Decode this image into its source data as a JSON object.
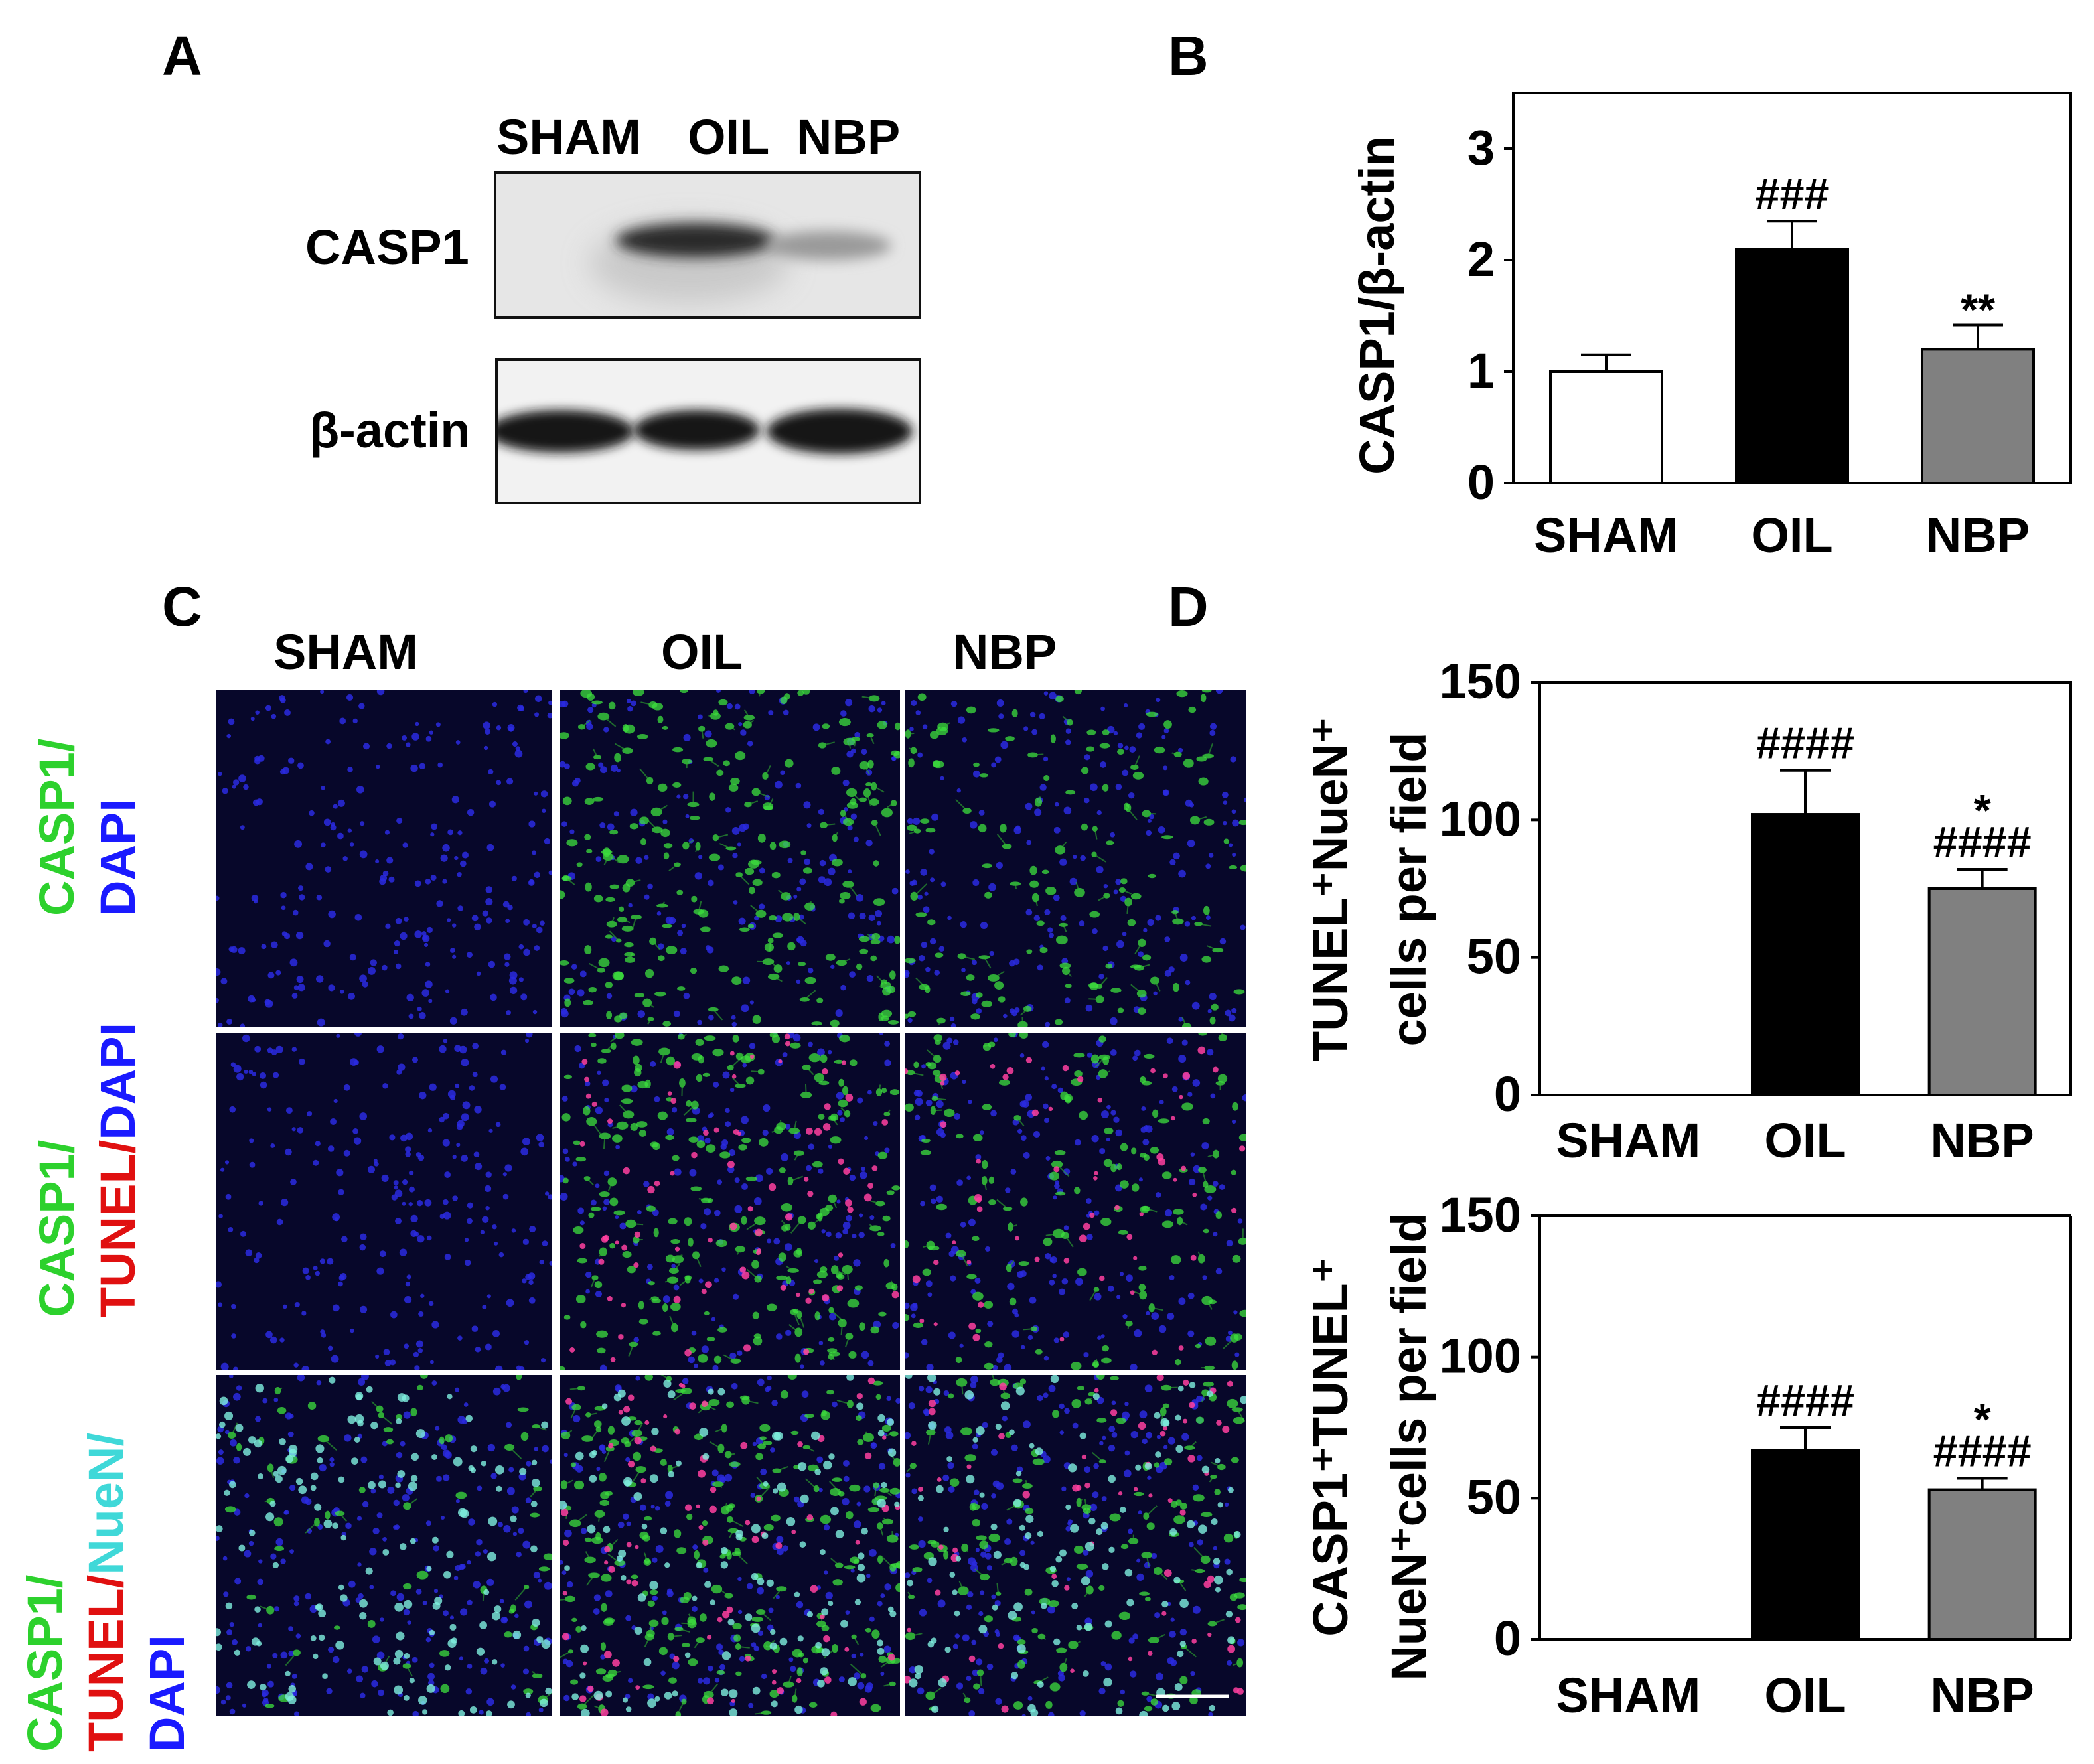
{
  "panels": {
    "A": "A",
    "B": "B",
    "C": "C",
    "D": "D"
  },
  "panelA": {
    "lanes": [
      "SHAM",
      "OIL",
      "NBP"
    ],
    "proteins": [
      "CASP1",
      "β-actin"
    ]
  },
  "panelC": {
    "columns": [
      "SHAM",
      "OIL",
      "NBP"
    ],
    "rows": [
      {
        "parts": [
          {
            "text": "CASP1/",
            "color": "#2dd12d"
          },
          {
            "text": "DAPI",
            "color": "#1a1aff"
          }
        ]
      },
      {
        "parts": [
          {
            "text": "CASP1/",
            "color": "#2dd12d"
          },
          {
            "text": "TUNEL/",
            "color": "#e01010"
          },
          {
            "text": "DAPI",
            "color": "#1a1aff"
          }
        ]
      },
      {
        "parts": [
          {
            "text": "CASP1/",
            "color": "#2dd12d"
          },
          {
            "text": "TUNEL/",
            "color": "#e01010"
          },
          {
            "text": "NueN/",
            "color": "#3fd8d8"
          },
          {
            "text": "DAPI",
            "color": "#1a1aff"
          }
        ]
      }
    ]
  },
  "chart_data": [
    {
      "type": "bar",
      "panel": "B",
      "categories": [
        "SHAM",
        "OIL",
        "NBP"
      ],
      "values": [
        1.0,
        2.1,
        1.2
      ],
      "errors": [
        0.15,
        0.25,
        0.22
      ],
      "annotations": [
        "",
        "###",
        "**"
      ],
      "ylabel": "CASP1/β-actin",
      "ylim": [
        0,
        3.5
      ],
      "yticks": [
        0,
        1,
        2,
        3
      ],
      "colors": [
        "#ffffff",
        "#000000",
        "#808080"
      ]
    },
    {
      "type": "bar",
      "panel": "D-top",
      "categories": [
        "SHAM",
        "OIL",
        "NBP"
      ],
      "values": [
        0,
        102,
        75
      ],
      "errors": [
        0,
        16,
        7
      ],
      "annotations": [
        "",
        "####",
        "*\n####"
      ],
      "ylabel_lines": [
        "TUNEL⁺NueN⁺",
        "cells per field"
      ],
      "ylim": [
        0,
        150
      ],
      "yticks": [
        0,
        50,
        100,
        150
      ],
      "colors": [
        "#ffffff",
        "#000000",
        "#808080"
      ]
    },
    {
      "type": "bar",
      "panel": "D-bottom",
      "categories": [
        "SHAM",
        "OIL",
        "NBP"
      ],
      "values": [
        0,
        67,
        53
      ],
      "errors": [
        0,
        8,
        4
      ],
      "annotations": [
        "",
        "####",
        "*\n####"
      ],
      "ylabel_lines": [
        "CASP1⁺TUNEL⁺",
        "NueN⁺cells per field"
      ],
      "ylim": [
        0,
        150
      ],
      "yticks": [
        0,
        50,
        100,
        150
      ],
      "colors": [
        "#ffffff",
        "#000000",
        "#808080"
      ]
    }
  ]
}
